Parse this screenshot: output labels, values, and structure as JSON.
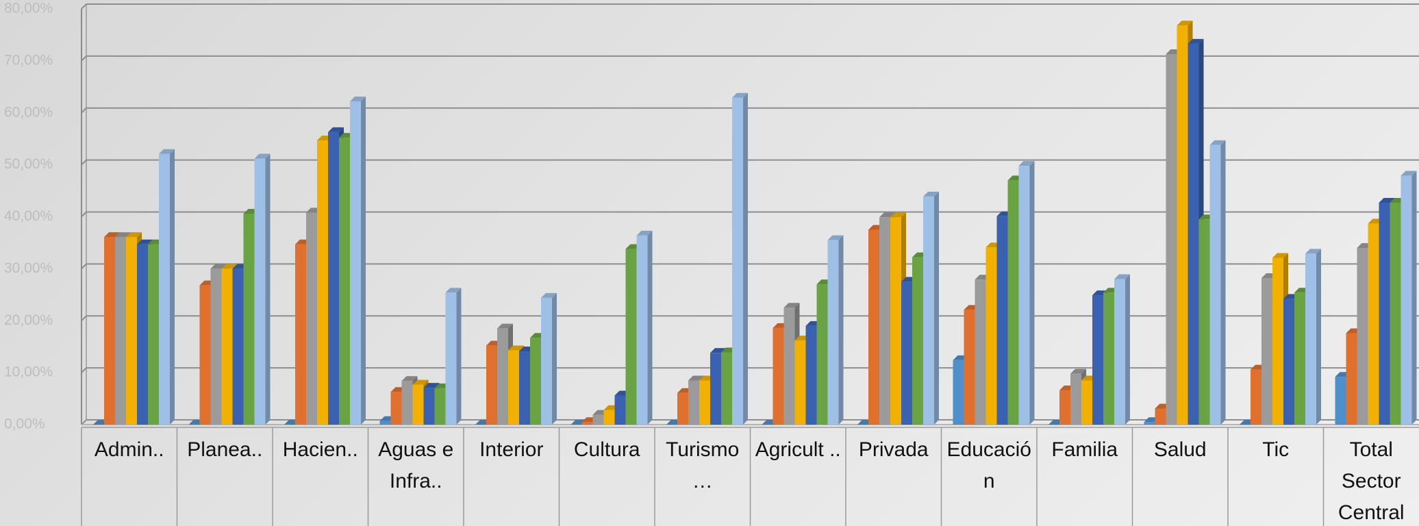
{
  "chart_data": {
    "type": "bar3d",
    "categories": [
      "Admin..",
      "Planea..",
      "Hacien..",
      "Aguas e Infra..",
      "Interior",
      "Cultura",
      "Turismo …",
      "Agricult ..",
      "Privada",
      "Educación",
      "Familia",
      "Salud",
      "Tic",
      "Total Sector Central"
    ],
    "series": [
      {
        "color": "#4f8fcc",
        "values": [
          0,
          0,
          0,
          0.7,
          0,
          0,
          0,
          0,
          0,
          12.4,
          0,
          0.5,
          0,
          9.2
        ]
      },
      {
        "color": "#e0702e",
        "values": [
          36.1,
          26.8,
          34.7,
          6.3,
          15.2,
          0.5,
          6.1,
          18.6,
          37.5,
          22.1,
          6.6,
          3.1,
          10.6,
          17.6
        ]
      },
      {
        "color": "#9b9b9b",
        "values": [
          36.1,
          30.0,
          40.8,
          8.4,
          18.5,
          1.9,
          8.5,
          22.5,
          39.9,
          27.9,
          9.8,
          71.3,
          28.2,
          34.0
        ]
      },
      {
        "color": "#f2b000",
        "values": [
          36.1,
          30.0,
          54.7,
          7.7,
          14.3,
          2.8,
          8.5,
          16.2,
          39.9,
          34.1,
          8.5,
          76.8,
          32.1,
          38.7
        ]
      },
      {
        "color": "#3a62b0",
        "values": [
          34.7,
          30.0,
          56.3,
          7.1,
          14.1,
          5.6,
          13.8,
          19.0,
          27.5,
          40.1,
          24.9,
          73.3,
          24.2,
          42.7
        ]
      },
      {
        "color": "#6aa343",
        "values": [
          34.7,
          40.6,
          55.2,
          7.0,
          16.7,
          33.8,
          13.9,
          27.0,
          32.2,
          47.0,
          25.4,
          39.5,
          25.4,
          42.7
        ]
      },
      {
        "color": "#9fc0e6",
        "values": [
          52.1,
          51.2,
          62.2,
          25.4,
          24.4,
          36.4,
          62.9,
          35.5,
          43.9,
          49.8,
          28.0,
          53.8,
          32.9,
          47.9
        ]
      }
    ],
    "ylim": [
      0,
      80
    ],
    "yticks": [
      {
        "value": 0,
        "label": "0,00%"
      },
      {
        "value": 10,
        "label": "10,00%"
      },
      {
        "value": 20,
        "label": "20,00%"
      },
      {
        "value": 30,
        "label": "30,00%"
      },
      {
        "value": 40,
        "label": "40,00%"
      },
      {
        "value": 50,
        "label": "50,00%"
      },
      {
        "value": 60,
        "label": "60,00%"
      },
      {
        "value": 70,
        "label": "70,00%"
      },
      {
        "value": 80,
        "label": "80,00%"
      }
    ],
    "grid": true
  }
}
